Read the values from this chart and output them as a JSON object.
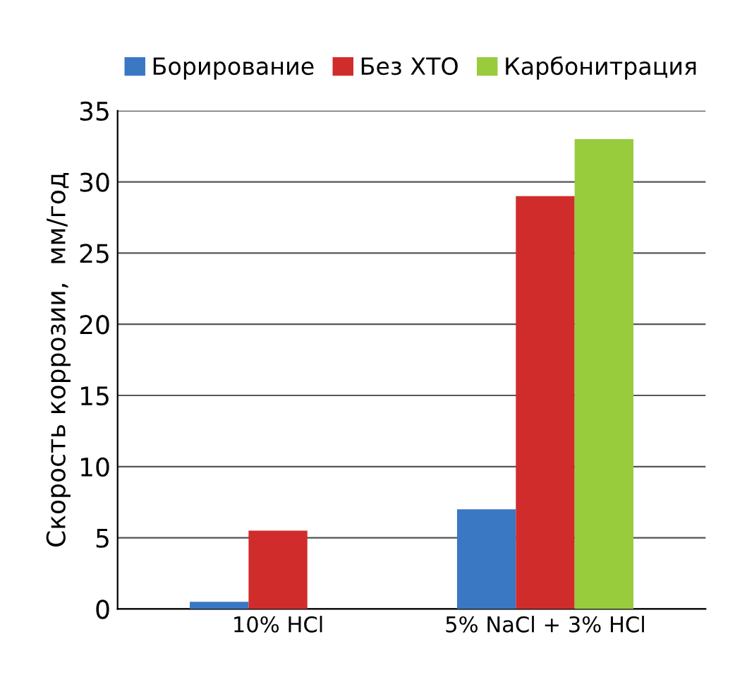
{
  "chart_data": {
    "type": "bar",
    "ylabel": "Скорость коррозии,  мм/год",
    "categories": [
      "10% HCl",
      "5% NaCl + 3% HCl"
    ],
    "series": [
      {
        "name": "Борирование",
        "color": "#3a78c4",
        "values": [
          0.5,
          7
        ]
      },
      {
        "name": "Без ХТО",
        "color": "#d02c2c",
        "values": [
          5.5,
          29
        ]
      },
      {
        "name": "Карбонитрация",
        "color": "#98cc3c",
        "values": [
          null,
          33
        ]
      }
    ],
    "ylim": [
      0,
      35
    ],
    "yticks": [
      0,
      5,
      10,
      15,
      20,
      25,
      30,
      35
    ],
    "grid": "y",
    "legend": "top"
  }
}
